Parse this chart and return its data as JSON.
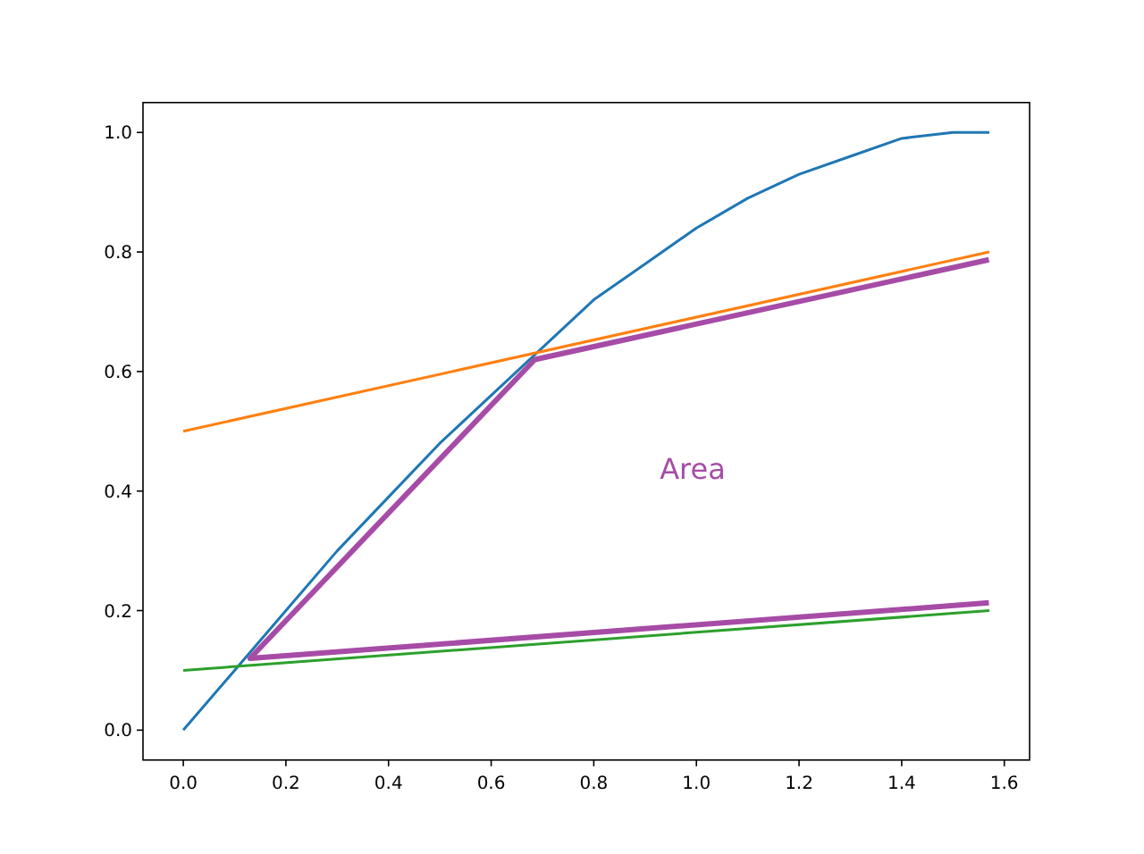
{
  "chart_data": {
    "type": "line",
    "xlim": [
      -0.0785,
      1.6493
    ],
    "ylim": [
      -0.05,
      1.05
    ],
    "xticks": [
      {
        "value": 0,
        "label": "0.0"
      },
      {
        "value": 0.2,
        "label": "0.2"
      },
      {
        "value": 0.4,
        "label": "0.4"
      },
      {
        "value": 0.6,
        "label": "0.6"
      },
      {
        "value": 0.8,
        "label": "0.8"
      },
      {
        "value": 1,
        "label": "1.0"
      },
      {
        "value": 1.2,
        "label": "1.2"
      },
      {
        "value": 1.4,
        "label": "1.4"
      },
      {
        "value": 1.6,
        "label": "1.6"
      }
    ],
    "yticks": [
      {
        "value": 0,
        "label": "0.0"
      },
      {
        "value": 0.2,
        "label": "0.2"
      },
      {
        "value": 0.4,
        "label": "0.4"
      },
      {
        "value": 0.6,
        "label": "0.6"
      },
      {
        "value": 0.8,
        "label": "0.8"
      },
      {
        "value": 1,
        "label": "1.0"
      }
    ],
    "grid": false,
    "marker": "none",
    "series": [
      {
        "color": "#1f77b4",
        "x": [
          0,
          0.1,
          0.2,
          0.3,
          0.4,
          0.5,
          0.6,
          0.7,
          0.8,
          0.9,
          1.0,
          1.1,
          1.2,
          1.3,
          1.4,
          1.5,
          1.5708
        ],
        "values": [
          0,
          0.1,
          0.2,
          0.3,
          0.39,
          0.48,
          0.56,
          0.64,
          0.72,
          0.78,
          0.84,
          0.89,
          0.93,
          0.96,
          0.99,
          1.0,
          1.0
        ]
      },
      {
        "color": "#ff7f0e",
        "x": [
          0,
          1.5708
        ],
        "values": [
          0.5,
          0.8
        ]
      },
      {
        "color": "#2ca02c",
        "x": [
          0,
          1.5708
        ],
        "values": [
          0.1,
          0.2
        ]
      },
      {
        "color": "#a64ca6",
        "x": [
          1.57,
          0.13,
          0.685,
          1.57
        ],
        "values": [
          0.213,
          0.12,
          0.62,
          0.787
        ]
      }
    ],
    "annotations": [
      "Area"
    ]
  }
}
